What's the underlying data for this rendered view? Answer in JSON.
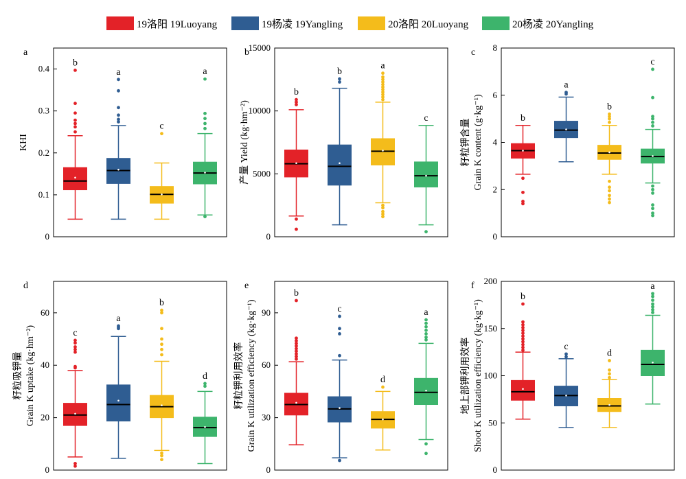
{
  "legend": [
    {
      "label": "19洛阳 19Luoyang",
      "color": "#e32228"
    },
    {
      "label": "19杨凌 19Yangling",
      "color": "#2f5d92"
    },
    {
      "label": "20洛阳 20Luoyang",
      "color": "#f4bc1b"
    },
    {
      "label": "20杨凌 20Yangling",
      "color": "#3db46c"
    }
  ],
  "chart_data": [
    {
      "type": "box",
      "panel": "a",
      "ylabel_lines": [
        "KHI"
      ],
      "ylim": [
        0,
        0.45
      ],
      "yticks": [
        0,
        0.1,
        0.2,
        0.3,
        0.4
      ],
      "tick_labels": [
        "0",
        "0.1",
        "0.2",
        "0.3",
        "0.4"
      ],
      "series": [
        {
          "name": "19洛阳 19Luoyang",
          "q1": 0.112,
          "median": 0.133,
          "q3": 0.165,
          "mean": 0.141,
          "whisker_low": 0.042,
          "whisker_high": 0.241,
          "outliers": [
            0.25,
            0.262,
            0.27,
            0.278,
            0.295,
            0.318,
            0.397
          ],
          "letter": "b"
        },
        {
          "name": "19杨凌 19Yangling",
          "q1": 0.127,
          "median": 0.158,
          "q3": 0.187,
          "mean": 0.16,
          "whisker_low": 0.042,
          "whisker_high": 0.265,
          "outliers": [
            0.274,
            0.28,
            0.29,
            0.308,
            0.348,
            0.375
          ],
          "letter": "a"
        },
        {
          "name": "20洛阳 20Luoyang",
          "q1": 0.08,
          "median": 0.101,
          "q3": 0.12,
          "mean": 0.101,
          "whisker_low": 0.042,
          "whisker_high": 0.176,
          "outliers": [
            0.246
          ],
          "letter": "c"
        },
        {
          "name": "20杨凌 20Yangling",
          "q1": 0.126,
          "median": 0.152,
          "q3": 0.178,
          "mean": 0.153,
          "whisker_low": 0.052,
          "whisker_high": 0.246,
          "outliers": [
            0.048,
            0.258,
            0.27,
            0.282,
            0.294,
            0.376
          ],
          "letter": "a"
        }
      ]
    },
    {
      "type": "box",
      "panel": "b",
      "ylabel_lines": [
        "产量 Yield (kg·hm⁻²)"
      ],
      "ylim": [
        0,
        15000
      ],
      "yticks": [
        0,
        5000,
        10000,
        15000
      ],
      "tick_labels": [
        "0",
        "5000",
        "10000",
        "15000"
      ],
      "series": [
        {
          "name": "19洛阳 19Luoyang",
          "q1": 4750,
          "median": 5800,
          "q3": 6900,
          "mean": 5850,
          "whisker_low": 1650,
          "whisker_high": 10100,
          "outliers": [
            600,
            1400,
            10500,
            10700,
            10900
          ],
          "letter": "b"
        },
        {
          "name": "19杨凌 19Yangling",
          "q1": 4100,
          "median": 5600,
          "q3": 7300,
          "mean": 5850,
          "whisker_low": 950,
          "whisker_high": 11800,
          "outliers": [
            12300,
            12550
          ],
          "letter": "b"
        },
        {
          "name": "20洛阳 20Luoyang",
          "q1": 5700,
          "median": 6800,
          "q3": 7800,
          "mean": 6850,
          "whisker_low": 2700,
          "whisker_high": 10700,
          "outliers": [
            1600,
            1800,
            2000,
            2300,
            2500,
            10900,
            11100,
            11300,
            11500,
            11700,
            11900,
            12100,
            12300,
            12500,
            12700,
            13000
          ],
          "letter": "a"
        },
        {
          "name": "20杨凌 20Yangling",
          "q1": 3950,
          "median": 4850,
          "q3": 5950,
          "mean": 4850,
          "whisker_low": 950,
          "whisker_high": 8850,
          "outliers": [
            400
          ],
          "letter": "c"
        }
      ]
    },
    {
      "type": "box",
      "panel": "c",
      "ylabel_lines": [
        "籽粒钾含量",
        "Grain K content (g·kg⁻¹)"
      ],
      "ylim": [
        0,
        8
      ],
      "yticks": [
        0,
        2,
        4,
        6,
        8
      ],
      "tick_labels": [
        "0",
        "2",
        "4",
        "6",
        "8"
      ],
      "series": [
        {
          "name": "19洛阳 19Luoyang",
          "q1": 3.33,
          "median": 3.65,
          "q3": 3.95,
          "mean": 3.65,
          "whisker_low": 2.65,
          "whisker_high": 4.72,
          "outliers": [
            1.4,
            1.5,
            1.88,
            2.48
          ],
          "letter": "b"
        },
        {
          "name": "19杨凌 19Yangling",
          "q1": 4.2,
          "median": 4.52,
          "q3": 4.9,
          "mean": 4.55,
          "whisker_low": 3.18,
          "whisker_high": 5.92,
          "outliers": [
            6.05,
            6.12
          ],
          "letter": "a"
        },
        {
          "name": "20洛阳 20Luoyang",
          "q1": 3.28,
          "median": 3.55,
          "q3": 3.88,
          "mean": 3.58,
          "whisker_low": 2.65,
          "whisker_high": 4.72,
          "outliers": [
            1.45,
            1.6,
            1.75,
            1.95,
            2.1,
            2.35,
            4.85,
            5.0,
            5.1,
            5.2
          ],
          "letter": "b"
        },
        {
          "name": "20杨凌 20Yangling",
          "q1": 3.12,
          "median": 3.4,
          "q3": 3.72,
          "mean": 3.42,
          "whisker_low": 2.28,
          "whisker_high": 4.55,
          "outliers": [
            0.9,
            1.0,
            1.2,
            1.35,
            1.85,
            2.0,
            2.15,
            4.7,
            4.85,
            5.0,
            5.1,
            5.9,
            7.1
          ],
          "letter": "c"
        }
      ]
    },
    {
      "type": "box",
      "panel": "d",
      "ylabel_lines": [
        "籽粒吸钾量",
        "Grain K uptake (kg·hm⁻²)"
      ],
      "ylim": [
        0,
        72
      ],
      "yticks": [
        0,
        20,
        40,
        60
      ],
      "tick_labels": [
        "0",
        "20",
        "40",
        "60"
      ],
      "series": [
        {
          "name": "19洛阳 19Luoyang",
          "q1": 17.0,
          "median": 21.0,
          "q3": 25.5,
          "mean": 21.5,
          "whisker_low": 5.0,
          "whisker_high": 38.0,
          "outliers": [
            1.5,
            2.5,
            39.0,
            39.5,
            45.0,
            46.0,
            47.0,
            48.5,
            49.5
          ],
          "letter": "c"
        },
        {
          "name": "19杨凌 19Yangling",
          "q1": 18.7,
          "median": 25.0,
          "q3": 32.5,
          "mean": 26.5,
          "whisker_low": 4.5,
          "whisker_high": 51.0,
          "outliers": [
            54.0,
            54.5,
            55.0
          ],
          "letter": "a"
        },
        {
          "name": "20洛阳 20Luoyang",
          "q1": 20.0,
          "median": 24.2,
          "q3": 28.5,
          "mean": 24.7,
          "whisker_low": 7.5,
          "whisker_high": 41.5,
          "outliers": [
            4.0,
            5.5,
            6.5,
            44.0,
            46.0,
            48.0,
            50.0,
            54.0,
            60.0,
            61.0
          ],
          "letter": "b"
        },
        {
          "name": "20杨凌 20Yangling",
          "q1": 12.8,
          "median": 16.2,
          "q3": 20.2,
          "mean": 16.4,
          "whisker_low": 2.5,
          "whisker_high": 30.0,
          "outliers": [
            32.0,
            33.0
          ],
          "letter": "d"
        }
      ]
    },
    {
      "type": "box",
      "panel": "e",
      "ylabel_lines": [
        "籽粒钾利用效率",
        "Grain K utilization efficiency (kg·kg⁻¹)"
      ],
      "ylim": [
        0,
        108
      ],
      "yticks": [
        0,
        30,
        60,
        90
      ],
      "tick_labels": [
        "0",
        "30",
        "60",
        "90"
      ],
      "series": [
        {
          "name": "19洛阳 19Luoyang",
          "q1": 31.5,
          "median": 37.5,
          "q3": 44.0,
          "mean": 38.5,
          "whisker_low": 14.5,
          "whisker_high": 62.0,
          "outliers": [
            63.5,
            65.0,
            66.5,
            68.0,
            69.5,
            71.0,
            72.5,
            74.0,
            75.5,
            97.0
          ],
          "letter": "b"
        },
        {
          "name": "19杨凌 19Yangling",
          "q1": 27.5,
          "median": 35.0,
          "q3": 42.0,
          "mean": 35.5,
          "whisker_low": 7.0,
          "whisker_high": 63.0,
          "outliers": [
            5.5,
            65.5,
            78.0,
            81.0,
            88.0
          ],
          "letter": "c"
        },
        {
          "name": "20洛阳 20Luoyang",
          "q1": 24.0,
          "median": 29.0,
          "q3": 33.5,
          "mean": 29.0,
          "whisker_low": 11.5,
          "whisker_high": 45.0,
          "outliers": [
            47.5
          ],
          "letter": "d"
        },
        {
          "name": "20杨凌 20Yangling",
          "q1": 37.5,
          "median": 44.5,
          "q3": 52.5,
          "mean": 45.5,
          "whisker_low": 17.5,
          "whisker_high": 72.5,
          "outliers": [
            9.5,
            15.0,
            74.5,
            76.0,
            78.0,
            80.0,
            82.0,
            84.0,
            86.0
          ],
          "letter": "a"
        }
      ]
    },
    {
      "type": "box",
      "panel": "f",
      "ylabel_lines": [
        "地上部钾利用效率",
        "Shoot K utilization efficiency (kg·kg⁻¹)"
      ],
      "ylim": [
        0,
        200
      ],
      "yticks": [
        0,
        50,
        100,
        150,
        200
      ],
      "tick_labels": [
        "0",
        "50",
        "100",
        "150",
        "200"
      ],
      "series": [
        {
          "name": "19洛阳 19Luoyang",
          "q1": 74,
          "median": 83,
          "q3": 95,
          "mean": 86,
          "whisker_low": 54,
          "whisker_high": 125,
          "outliers": [
            127,
            130,
            133,
            136,
            139,
            142,
            145,
            148,
            151,
            154,
            157,
            176
          ],
          "letter": "b"
        },
        {
          "name": "19杨凌 19Yangling",
          "q1": 68,
          "median": 79,
          "q3": 89,
          "mean": 79,
          "whisker_low": 45,
          "whisker_high": 118,
          "outliers": [
            120,
            123
          ],
          "letter": "c"
        },
        {
          "name": "20洛阳 20Luoyang",
          "q1": 62,
          "median": 68,
          "q3": 76,
          "mean": 69,
          "whisker_low": 45,
          "whisker_high": 96,
          "outliers": [
            98,
            102,
            106,
            116
          ],
          "letter": "d"
        },
        {
          "name": "20杨凌 20Yangling",
          "q1": 100,
          "median": 112,
          "q3": 127,
          "mean": 114,
          "whisker_low": 70,
          "whisker_high": 164,
          "outliers": [
            167,
            170,
            173,
            176,
            180,
            184,
            187
          ],
          "letter": "a"
        }
      ]
    }
  ]
}
